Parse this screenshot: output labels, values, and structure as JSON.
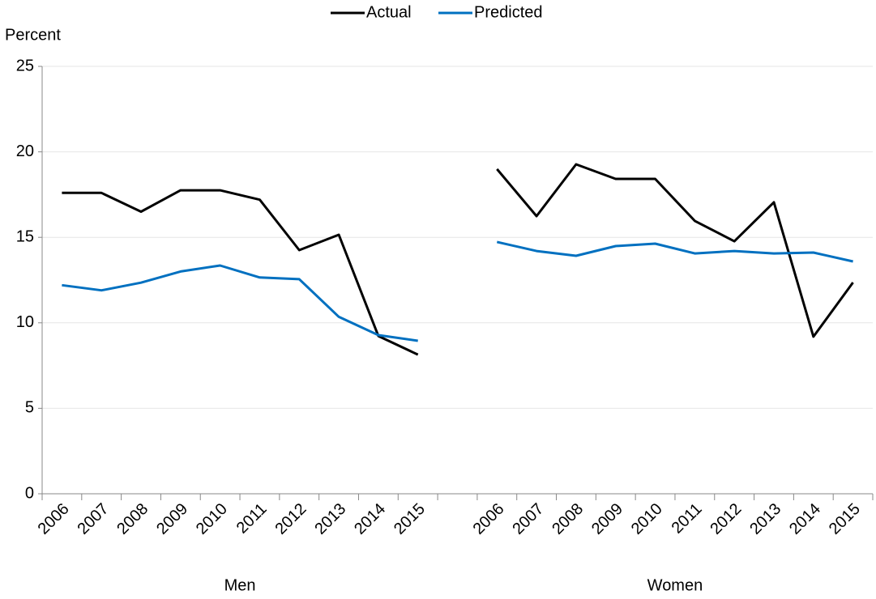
{
  "chart_data": {
    "type": "line",
    "y_label": "Percent",
    "categories": [
      "2006",
      "2007",
      "2008",
      "2009",
      "2010",
      "2011",
      "2012",
      "2013",
      "2014",
      "2015",
      null,
      "2006",
      "2007",
      "2008",
      "2009",
      "2010",
      "2011",
      "2012",
      "2013",
      "2014",
      "2015"
    ],
    "groups": [
      {
        "label": "Men",
        "from": 0,
        "to": 9
      },
      {
        "label": "Women",
        "from": 11,
        "to": 20
      }
    ],
    "series": [
      {
        "name": "Actual",
        "color": "#000000",
        "values": [
          17.6,
          17.6,
          16.5,
          17.75,
          17.75,
          17.2,
          14.25,
          15.15,
          9.23,
          8.14,
          null,
          18.99,
          16.24,
          19.27,
          18.42,
          18.42,
          15.96,
          14.77,
          17.05,
          9.19,
          12.36
        ]
      },
      {
        "name": "Predicted",
        "color": "#0070c0",
        "values": [
          12.2,
          11.9,
          12.35,
          13.0,
          13.35,
          12.65,
          12.55,
          10.35,
          9.28,
          8.95,
          null,
          14.73,
          14.2,
          13.92,
          14.49,
          14.63,
          14.06,
          14.2,
          14.06,
          14.11,
          13.59
        ]
      }
    ],
    "ylim": [
      0,
      25
    ],
    "yticks": [
      0,
      5,
      10,
      15,
      20,
      25
    ],
    "grid": true,
    "legend": "top"
  }
}
